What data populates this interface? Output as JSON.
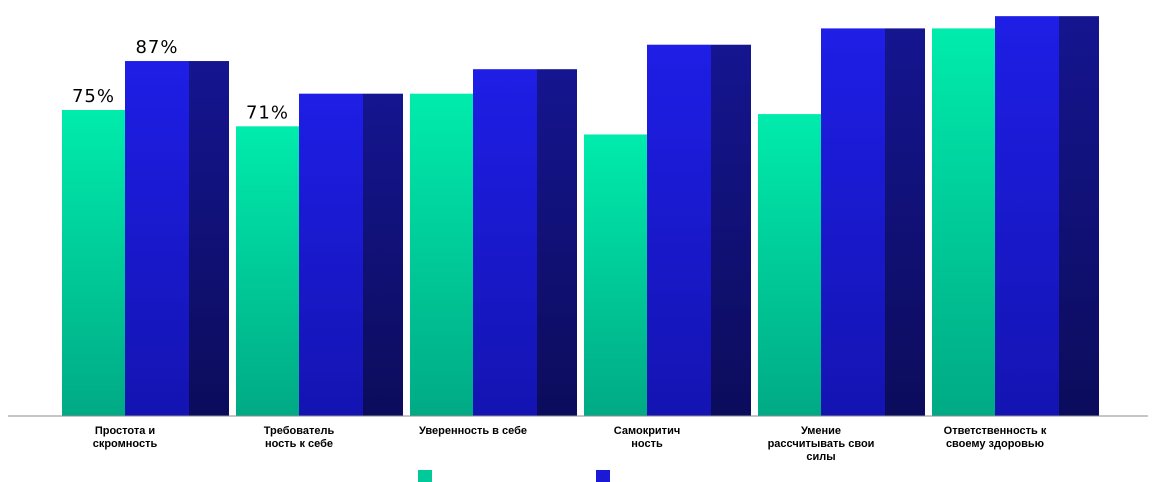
{
  "chart_data": {
    "type": "bar",
    "categories": [
      [
        "Простота и",
        "скромность"
      ],
      [
        "Требователь",
        "ность к себе"
      ],
      [
        "Уверенность в себе"
      ],
      [
        "Самокритич",
        "ность"
      ],
      [
        "Умение",
        "рассчитывать свои",
        "силы"
      ],
      [
        "Ответственность к",
        "своему здоровью"
      ]
    ],
    "series": [
      {
        "color": "#00c99a",
        "values": [
          75,
          71,
          79,
          69,
          74,
          95
        ],
        "data_labels": [
          "75%",
          "71%",
          "",
          "",
          "",
          ""
        ]
      },
      {
        "color": "#1a1ad6",
        "values": [
          87,
          79,
          85,
          91,
          95,
          98
        ],
        "data_labels": [
          "87%",
          "",
          "",
          "",
          "",
          ""
        ]
      }
    ],
    "ylim": [
      0,
      100
    ],
    "grid": false,
    "legend_position": "bottom"
  }
}
